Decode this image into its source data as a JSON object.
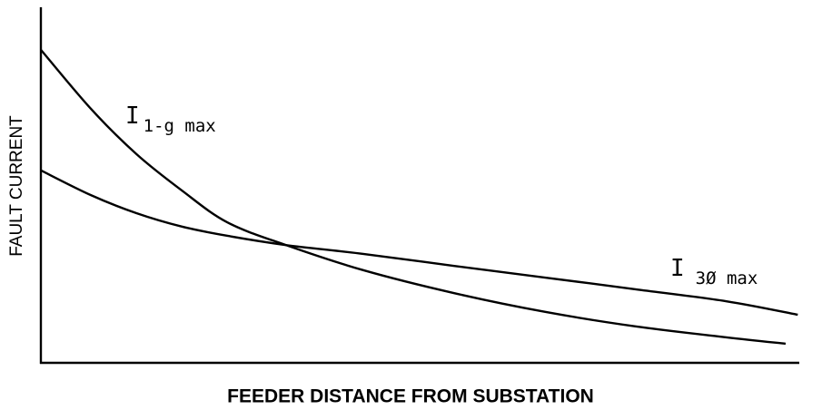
{
  "chart_data": {
    "type": "line",
    "x_label": "FEEDER DISTANCE FROM SUBSTATION",
    "y_label": "FAULT CURRENT",
    "xlim": [
      0,
      100
    ],
    "ylim": [
      0,
      100
    ],
    "series": [
      {
        "name": {
          "base": "I",
          "subscript": "1-g max"
        },
        "color": "#000000",
        "x": [
          0,
          6.6,
          12.6,
          18.6,
          24.6,
          32.3,
          42.5,
          54.5,
          66.5,
          78.4,
          90.4,
          98.2
        ],
        "values": [
          88.5,
          71.8,
          59.0,
          48.7,
          39.7,
          33.3,
          26.2,
          19.7,
          14.4,
          10.3,
          7.2,
          5.4
        ]
      },
      {
        "name": {
          "base": "I",
          "subscript": "3Ø max"
        },
        "color": "#000000",
        "x": [
          0,
          6.6,
          12.6,
          18.6,
          24.6,
          32.3,
          42.5,
          54.5,
          66.5,
          78.4,
          90.4,
          99.8
        ],
        "values": [
          54.4,
          47.4,
          42.3,
          38.5,
          35.9,
          33.3,
          30.8,
          27.4,
          24.1,
          20.8,
          17.4,
          13.6
        ]
      }
    ]
  }
}
